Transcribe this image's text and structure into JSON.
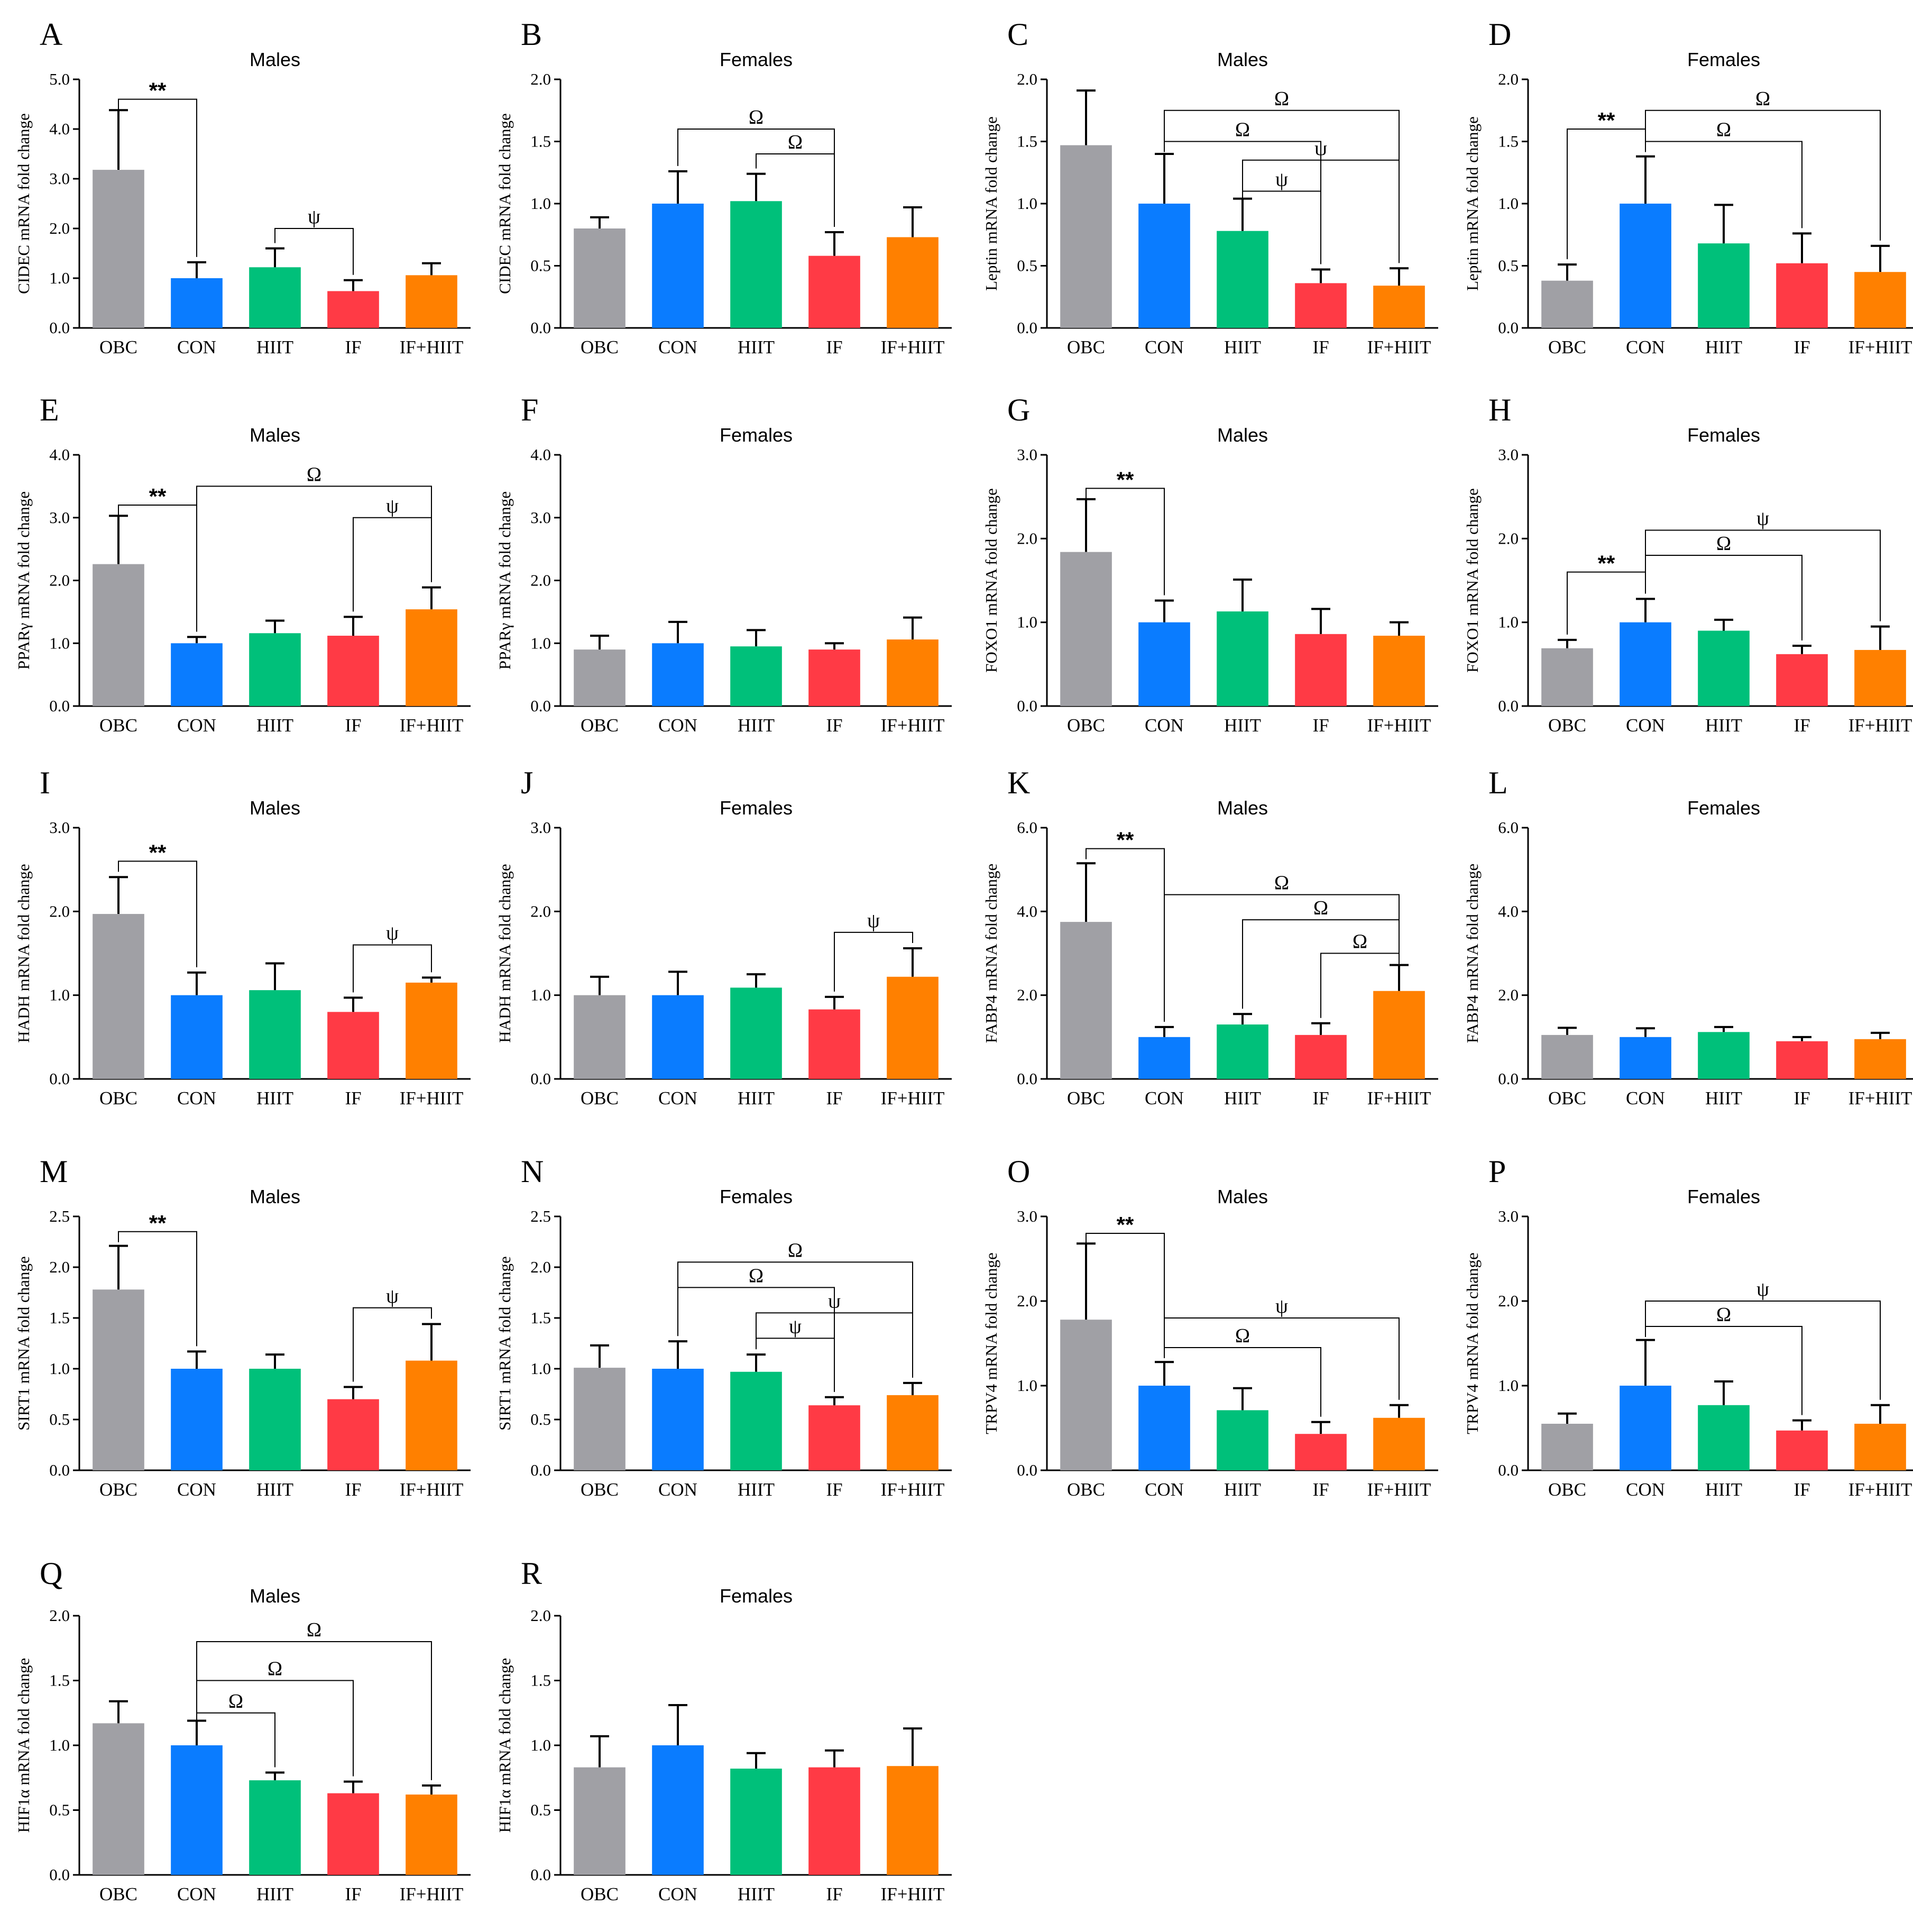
{
  "figure": {
    "colors": {
      "OBC": "#a0a0a5",
      "CON": "#0a7cff",
      "HIIT": "#00c07a",
      "IF": "#ff3a45",
      "IF+HIIT": "#ff8000"
    },
    "groups": [
      "OBC",
      "CON",
      "HIIT",
      "IF",
      "IF+HIIT"
    ]
  },
  "chart_data": [
    {
      "id": "A",
      "type": "bar",
      "title": "Males",
      "ylabel": "CIDEC mRNA fold change",
      "ylim": [
        0,
        5
      ],
      "yticks": [
        "0.0",
        "1.0",
        "2.0",
        "3.0",
        "4.0",
        "5.0"
      ],
      "categories": [
        "OBC",
        "CON",
        "HIIT",
        "IF",
        "IF+HIIT"
      ],
      "values": [
        3.18,
        1.0,
        1.22,
        0.74,
        1.06
      ],
      "errors": [
        1.2,
        0.32,
        0.38,
        0.22,
        0.24
      ],
      "significance": [
        {
          "from": 0,
          "to": 1,
          "symbol": "**",
          "level": 4.6
        },
        {
          "from": 2,
          "to": 3,
          "symbol": "ψ",
          "level": 2.0
        }
      ]
    },
    {
      "id": "B",
      "type": "bar",
      "title": "Females",
      "ylabel": "CIDEC mRNA fold change",
      "ylim": [
        0,
        2
      ],
      "yticks": [
        "0.0",
        "0.5",
        "1.0",
        "1.5",
        "2.0"
      ],
      "categories": [
        "OBC",
        "CON",
        "HIIT",
        "IF",
        "IF+HIIT"
      ],
      "values": [
        0.8,
        1.0,
        1.02,
        0.58,
        0.73
      ],
      "errors": [
        0.09,
        0.26,
        0.22,
        0.19,
        0.24
      ],
      "significance": [
        {
          "from": 1,
          "to": 3,
          "symbol": "Ω",
          "level": 1.6
        },
        {
          "from": 2,
          "to": 3,
          "symbol": "Ω",
          "level": 1.4
        }
      ]
    },
    {
      "id": "C",
      "type": "bar",
      "title": "Males",
      "ylabel": "Leptin mRNA fold change",
      "ylim": [
        0,
        2
      ],
      "yticks": [
        "0.0",
        "0.5",
        "1.0",
        "1.5",
        "2.0"
      ],
      "categories": [
        "OBC",
        "CON",
        "HIIT",
        "IF",
        "IF+HIIT"
      ],
      "values": [
        1.47,
        1.0,
        0.78,
        0.36,
        0.34
      ],
      "errors": [
        0.44,
        0.4,
        0.26,
        0.11,
        0.14
      ],
      "significance": [
        {
          "from": 1,
          "to": 4,
          "symbol": "Ω",
          "level": 1.75
        },
        {
          "from": 1,
          "to": 3,
          "symbol": "Ω",
          "level": 1.5
        },
        {
          "from": 2,
          "to": 4,
          "symbol": "ψ",
          "level": 1.35
        },
        {
          "from": 2,
          "to": 3,
          "symbol": "ψ",
          "level": 1.1
        }
      ]
    },
    {
      "id": "D",
      "type": "bar",
      "title": "Females",
      "ylabel": "Leptin mRNA fold change",
      "ylim": [
        0,
        2
      ],
      "yticks": [
        "0.0",
        "0.5",
        "1.0",
        "1.5",
        "2.0"
      ],
      "categories": [
        "OBC",
        "CON",
        "HIIT",
        "IF",
        "IF+HIIT"
      ],
      "values": [
        0.38,
        1.0,
        0.68,
        0.52,
        0.45
      ],
      "errors": [
        0.13,
        0.38,
        0.31,
        0.24,
        0.21
      ],
      "significance": [
        {
          "from": 0,
          "to": 1,
          "symbol": "**",
          "level": 1.6
        },
        {
          "from": 1,
          "to": 4,
          "symbol": "Ω",
          "level": 1.75
        },
        {
          "from": 1,
          "to": 3,
          "symbol": "Ω",
          "level": 1.5
        }
      ]
    },
    {
      "id": "E",
      "type": "bar",
      "title": "Males",
      "ylabel": "PPARγ mRNA fold change",
      "ylim": [
        0,
        4
      ],
      "yticks": [
        "0.0",
        "1.0",
        "2.0",
        "3.0",
        "4.0"
      ],
      "categories": [
        "OBC",
        "CON",
        "HIIT",
        "IF",
        "IF+HIIT"
      ],
      "values": [
        2.26,
        1.0,
        1.16,
        1.12,
        1.54
      ],
      "errors": [
        0.77,
        0.1,
        0.2,
        0.3,
        0.35
      ],
      "significance": [
        {
          "from": 0,
          "to": 1,
          "symbol": "**",
          "level": 3.2
        },
        {
          "from": 1,
          "to": 4,
          "symbol": "Ω",
          "level": 3.5
        },
        {
          "from": 3,
          "to": 4,
          "symbol": "ψ",
          "level": 3.0
        }
      ]
    },
    {
      "id": "F",
      "type": "bar",
      "title": "Females",
      "ylabel": "PPARγ mRNA fold change",
      "ylim": [
        0,
        4
      ],
      "yticks": [
        "0.0",
        "1.0",
        "2.0",
        "3.0",
        "4.0"
      ],
      "categories": [
        "OBC",
        "CON",
        "HIIT",
        "IF",
        "IF+HIIT"
      ],
      "values": [
        0.9,
        1.0,
        0.95,
        0.9,
        1.06
      ],
      "errors": [
        0.22,
        0.34,
        0.26,
        0.1,
        0.35
      ],
      "significance": []
    },
    {
      "id": "G",
      "type": "bar",
      "title": "Males",
      "ylabel": "FOXO1 mRNA fold change",
      "ylim": [
        0,
        3
      ],
      "yticks": [
        "0.0",
        "1.0",
        "2.0",
        "3.0"
      ],
      "categories": [
        "OBC",
        "CON",
        "HIIT",
        "IF",
        "IF+HIIT"
      ],
      "values": [
        1.84,
        1.0,
        1.13,
        0.86,
        0.84
      ],
      "errors": [
        0.63,
        0.26,
        0.38,
        0.3,
        0.16
      ],
      "significance": [
        {
          "from": 0,
          "to": 1,
          "symbol": "**",
          "level": 2.6
        }
      ]
    },
    {
      "id": "H",
      "type": "bar",
      "title": "Females",
      "ylabel": "FOXO1 mRNA fold change",
      "ylim": [
        0,
        3
      ],
      "yticks": [
        "0.0",
        "1.0",
        "2.0",
        "3.0"
      ],
      "categories": [
        "OBC",
        "CON",
        "HIIT",
        "IF",
        "IF+HIIT"
      ],
      "values": [
        0.69,
        1.0,
        0.9,
        0.62,
        0.67
      ],
      "errors": [
        0.1,
        0.28,
        0.13,
        0.1,
        0.28
      ],
      "significance": [
        {
          "from": 0,
          "to": 1,
          "symbol": "**",
          "level": 1.6
        },
        {
          "from": 1,
          "to": 4,
          "symbol": "ψ",
          "level": 2.1
        },
        {
          "from": 1,
          "to": 3,
          "symbol": "Ω",
          "level": 1.8
        }
      ]
    },
    {
      "id": "I",
      "type": "bar",
      "title": "Males",
      "ylabel": "HADH mRNA fold change",
      "ylim": [
        0,
        3
      ],
      "yticks": [
        "0.0",
        "1.0",
        "2.0",
        "3.0"
      ],
      "categories": [
        "OBC",
        "CON",
        "HIIT",
        "IF",
        "IF+HIIT"
      ],
      "values": [
        1.97,
        1.0,
        1.06,
        0.8,
        1.15
      ],
      "errors": [
        0.44,
        0.27,
        0.32,
        0.17,
        0.06
      ],
      "significance": [
        {
          "from": 0,
          "to": 1,
          "symbol": "**",
          "level": 2.6
        },
        {
          "from": 3,
          "to": 4,
          "symbol": "ψ",
          "level": 1.6
        }
      ]
    },
    {
      "id": "J",
      "type": "bar",
      "title": "Females",
      "ylabel": "HADH mRNA fold change",
      "ylim": [
        0,
        3
      ],
      "yticks": [
        "0.0",
        "1.0",
        "2.0",
        "3.0"
      ],
      "categories": [
        "OBC",
        "CON",
        "HIIT",
        "IF",
        "IF+HIIT"
      ],
      "values": [
        1.0,
        1.0,
        1.09,
        0.83,
        1.22
      ],
      "errors": [
        0.22,
        0.28,
        0.16,
        0.15,
        0.34
      ],
      "significance": [
        {
          "from": 3,
          "to": 4,
          "symbol": "ψ",
          "level": 1.75
        }
      ]
    },
    {
      "id": "K",
      "type": "bar",
      "title": "Males",
      "ylabel": "FABP4 mRNA fold change",
      "ylim": [
        0,
        6
      ],
      "yticks": [
        "0.0",
        "2.0",
        "4.0",
        "6.0"
      ],
      "categories": [
        "OBC",
        "CON",
        "HIIT",
        "IF",
        "IF+HIIT"
      ],
      "values": [
        3.75,
        1.0,
        1.3,
        1.05,
        2.1
      ],
      "errors": [
        1.4,
        0.24,
        0.25,
        0.28,
        0.62
      ],
      "significance": [
        {
          "from": 0,
          "to": 1,
          "symbol": "**",
          "level": 5.5
        },
        {
          "from": 1,
          "to": 4,
          "symbol": "Ω",
          "level": 4.4
        },
        {
          "from": 2,
          "to": 4,
          "symbol": "Ω",
          "level": 3.8
        },
        {
          "from": 3,
          "to": 4,
          "symbol": "Ω",
          "level": 3.0
        }
      ]
    },
    {
      "id": "L",
      "type": "bar",
      "title": "Females",
      "ylabel": "FABP4 mRNA fold change",
      "ylim": [
        0,
        6
      ],
      "yticks": [
        "0.0",
        "2.0",
        "4.0",
        "6.0"
      ],
      "categories": [
        "OBC",
        "CON",
        "HIIT",
        "IF",
        "IF+HIIT"
      ],
      "values": [
        1.05,
        1.0,
        1.12,
        0.9,
        0.95
      ],
      "errors": [
        0.17,
        0.21,
        0.12,
        0.1,
        0.15
      ],
      "significance": []
    },
    {
      "id": "M",
      "type": "bar",
      "title": "Males",
      "ylabel": "SIRT1 mRNA fold change",
      "ylim": [
        0,
        2.5
      ],
      "yticks": [
        "0.0",
        "0.5",
        "1.0",
        "1.5",
        "2.0",
        "2.5"
      ],
      "categories": [
        "OBC",
        "CON",
        "HIIT",
        "IF",
        "IF+HIIT"
      ],
      "values": [
        1.78,
        1.0,
        1.0,
        0.7,
        1.08
      ],
      "errors": [
        0.43,
        0.17,
        0.14,
        0.12,
        0.36
      ],
      "significance": [
        {
          "from": 0,
          "to": 1,
          "symbol": "**",
          "level": 2.35
        },
        {
          "from": 3,
          "to": 4,
          "symbol": "ψ",
          "level": 1.6
        }
      ]
    },
    {
      "id": "N",
      "type": "bar",
      "title": "Females",
      "ylabel": "SIRT1 mRNA fold change",
      "ylim": [
        0,
        2.5
      ],
      "yticks": [
        "0.0",
        "0.5",
        "1.0",
        "1.5",
        "2.0",
        "2.5"
      ],
      "categories": [
        "OBC",
        "CON",
        "HIIT",
        "IF",
        "IF+HIIT"
      ],
      "values": [
        1.01,
        1.0,
        0.97,
        0.64,
        0.74
      ],
      "errors": [
        0.22,
        0.27,
        0.17,
        0.08,
        0.12
      ],
      "significance": [
        {
          "from": 1,
          "to": 4,
          "symbol": "Ω",
          "level": 2.05
        },
        {
          "from": 1,
          "to": 3,
          "symbol": "Ω",
          "level": 1.8
        },
        {
          "from": 2,
          "to": 4,
          "symbol": "ψ",
          "level": 1.55
        },
        {
          "from": 2,
          "to": 3,
          "symbol": "ψ",
          "level": 1.3
        }
      ]
    },
    {
      "id": "O",
      "type": "bar",
      "title": "Males",
      "ylabel": "TRPV4 mRNA fold change",
      "ylim": [
        0,
        3
      ],
      "yticks": [
        "0.0",
        "1.0",
        "2.0",
        "3.0"
      ],
      "categories": [
        "OBC",
        "CON",
        "HIIT",
        "IF",
        "IF+HIIT"
      ],
      "values": [
        1.78,
        1.0,
        0.71,
        0.43,
        0.62
      ],
      "errors": [
        0.9,
        0.28,
        0.26,
        0.14,
        0.15
      ],
      "significance": [
        {
          "from": 0,
          "to": 1,
          "symbol": "**",
          "level": 2.8
        },
        {
          "from": 1,
          "to": 4,
          "symbol": "ψ",
          "level": 1.8
        },
        {
          "from": 1,
          "to": 3,
          "symbol": "Ω",
          "level": 1.45
        }
      ]
    },
    {
      "id": "P",
      "type": "bar",
      "title": "Females",
      "ylabel": "TRPV4 mRNA fold change",
      "ylim": [
        0,
        3
      ],
      "yticks": [
        "0.0",
        "1.0",
        "2.0",
        "3.0"
      ],
      "categories": [
        "OBC",
        "CON",
        "HIIT",
        "IF",
        "IF+HIIT"
      ],
      "values": [
        0.55,
        1.0,
        0.77,
        0.47,
        0.55
      ],
      "errors": [
        0.12,
        0.54,
        0.28,
        0.12,
        0.22
      ],
      "significance": [
        {
          "from": 1,
          "to": 4,
          "symbol": "ψ",
          "level": 2.0
        },
        {
          "from": 1,
          "to": 3,
          "symbol": "Ω",
          "level": 1.7
        }
      ]
    },
    {
      "id": "Q",
      "type": "bar",
      "title": "Males",
      "ylabel": "HIF1α mRNA fold change",
      "ylim": [
        0,
        2
      ],
      "yticks": [
        "0.0",
        "0.5",
        "1.0",
        "1.5",
        "2.0"
      ],
      "categories": [
        "OBC",
        "CON",
        "HIIT",
        "IF",
        "IF+HIIT"
      ],
      "values": [
        1.17,
        1.0,
        0.73,
        0.63,
        0.62
      ],
      "errors": [
        0.17,
        0.19,
        0.06,
        0.09,
        0.07
      ],
      "significance": [
        {
          "from": 1,
          "to": 4,
          "symbol": "Ω",
          "level": 1.8
        },
        {
          "from": 1,
          "to": 3,
          "symbol": "Ω",
          "level": 1.5
        },
        {
          "from": 1,
          "to": 2,
          "symbol": "Ω",
          "level": 1.25
        }
      ]
    },
    {
      "id": "R",
      "type": "bar",
      "title": "Females",
      "ylabel": "HIF1α mRNA fold change",
      "ylim": [
        0,
        2
      ],
      "yticks": [
        "0.0",
        "0.5",
        "1.0",
        "1.5",
        "2.0"
      ],
      "categories": [
        "OBC",
        "CON",
        "HIIT",
        "IF",
        "IF+HIIT"
      ],
      "values": [
        0.83,
        1.0,
        0.82,
        0.83,
        0.84
      ],
      "errors": [
        0.24,
        0.31,
        0.12,
        0.13,
        0.29
      ],
      "significance": []
    }
  ]
}
